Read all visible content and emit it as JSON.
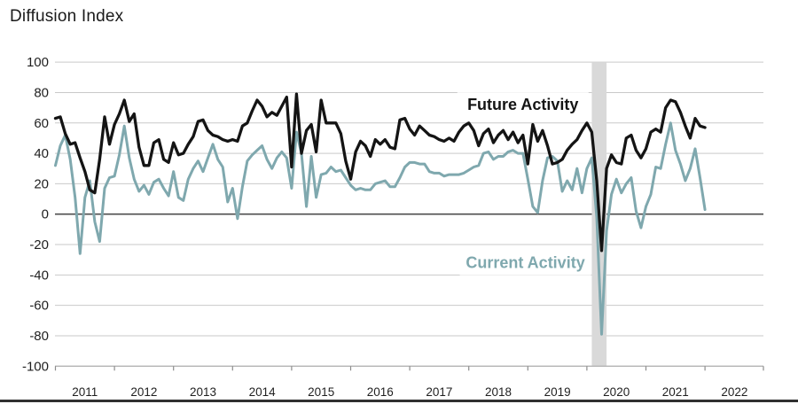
{
  "title": "Diffusion Index",
  "colors": {
    "future_line": "#141414",
    "current_line": "#7fa8ae",
    "recession_band": "#d9d9d9",
    "gridline": "#c9c9c9",
    "zero_line": "#4d4d4d",
    "axis_line": "#b3b3b3",
    "tick": "#8c8c8c",
    "label_text": "#1f1f1f",
    "bottom_bar": "#303030"
  },
  "chart_data": {
    "type": "line",
    "title": "Diffusion Index",
    "xlabel": "",
    "ylabel": "Diffusion Index",
    "ylim": [
      -100,
      100
    ],
    "yticks": [
      100,
      80,
      60,
      40,
      20,
      0,
      -20,
      -40,
      -60,
      -80,
      -100
    ],
    "grid": true,
    "x_start": {
      "year": 2011,
      "month": 1
    },
    "x_years": [
      2011,
      2012,
      2013,
      2014,
      2015,
      2016,
      2017,
      2018,
      2019,
      2020,
      2021,
      2022
    ],
    "frequency": "monthly",
    "recession_band": {
      "start_month_index": 109,
      "end_month_index": 112
    },
    "series": [
      {
        "name": "Future Activity",
        "values": [
          63,
          64,
          53,
          46,
          47,
          37,
          28,
          16,
          14,
          36,
          64,
          46,
          59,
          66,
          75,
          61,
          66,
          44,
          32,
          32,
          47,
          49,
          36,
          34,
          47,
          39,
          40,
          46,
          51,
          61,
          62,
          55,
          52,
          51,
          49,
          48,
          49,
          48,
          58,
          60,
          68,
          75,
          71,
          64,
          67,
          65,
          71,
          77,
          31,
          79,
          40,
          55,
          59,
          41,
          75,
          60,
          60,
          60,
          53,
          35,
          23,
          41,
          48,
          45,
          38,
          49,
          46,
          49,
          44,
          43,
          62,
          63,
          56,
          52,
          58,
          55,
          52,
          51,
          49,
          48,
          50,
          48,
          54,
          58,
          60,
          55,
          45,
          53,
          56,
          47,
          52,
          55,
          49,
          54,
          47,
          52,
          33,
          59,
          48,
          55,
          45,
          33,
          34,
          36,
          42,
          46,
          49,
          55,
          60,
          54,
          22,
          -24,
          30,
          39,
          34,
          33,
          50,
          52,
          42,
          37,
          43,
          54,
          56,
          54,
          70,
          75,
          74,
          67,
          58,
          50,
          63,
          58,
          57
        ]
      },
      {
        "name": "Current Activity",
        "values": [
          32,
          45,
          52,
          36,
          11,
          -26,
          11,
          22,
          -5,
          -18,
          17,
          24,
          25,
          39,
          58,
          37,
          23,
          15,
          19,
          13,
          21,
          23,
          17,
          12,
          28,
          11,
          9,
          23,
          30,
          35,
          28,
          37,
          46,
          36,
          31,
          8,
          17,
          -3,
          18,
          35,
          39,
          42,
          45,
          36,
          30,
          37,
          41,
          37,
          17,
          54,
          40,
          5,
          38,
          11,
          26,
          27,
          31,
          28,
          29,
          24,
          19,
          16,
          17,
          16,
          16,
          20,
          21,
          22,
          18,
          18,
          24,
          31,
          34,
          34,
          33,
          33,
          28,
          27,
          27,
          25,
          26,
          26,
          26,
          27,
          29,
          31,
          32,
          40,
          41,
          36,
          38,
          38,
          41,
          42,
          40,
          40,
          23,
          5,
          1,
          22,
          37,
          38,
          35,
          15,
          22,
          16,
          30,
          14,
          30,
          37,
          -2,
          -79,
          -11,
          13,
          23,
          14,
          20,
          24,
          2,
          -9,
          5,
          13,
          31,
          30,
          46,
          60,
          42,
          33,
          22,
          30,
          43,
          24,
          3
        ]
      }
    ],
    "annotations": [
      {
        "text": "Future Activity",
        "series": "Future Activity",
        "month_index": 95,
        "value": 72
      },
      {
        "text": "Current Activity",
        "series": "Current Activity",
        "month_index": 95.5,
        "value": -32
      }
    ],
    "legend_position": "inline-annotations"
  }
}
